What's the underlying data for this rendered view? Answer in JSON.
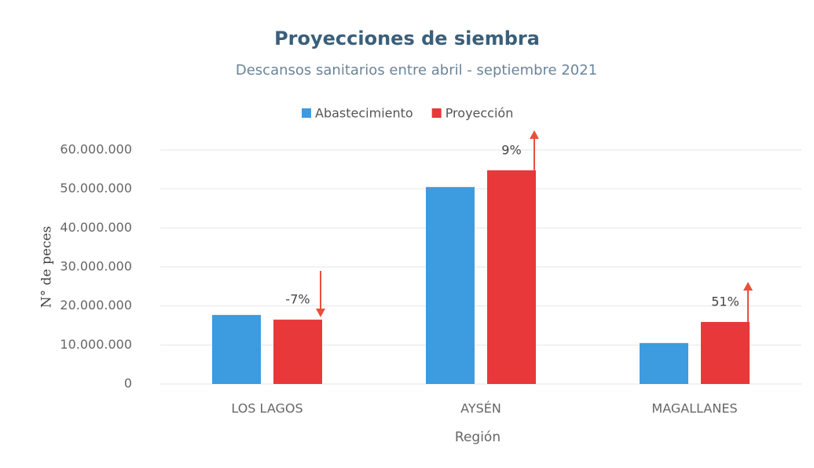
{
  "chart_data": {
    "type": "bar",
    "title": "Proyecciones de siembra",
    "subtitle": "Descansos sanitarios entre abril - septiembre 2021",
    "x_label": "Región",
    "y_label": "N° de peces",
    "categories": [
      "LOS LAGOS",
      "AYSÉN",
      "MAGALLANES"
    ],
    "series": [
      {
        "name": "Abastecimiento",
        "color": "#3d9be0",
        "values": [
          17700000,
          50500000,
          10500000
        ]
      },
      {
        "name": "Proyección",
        "color": "#e8383a",
        "values": [
          16500000,
          54800000,
          15900000
        ]
      }
    ],
    "annotations": [
      "-7%",
      "9%",
      "51%"
    ],
    "ylim": [
      0,
      60000000
    ],
    "yticks": [
      0,
      {
        "value": 10000000,
        "label": "10.000.000"
      },
      {
        "value": 20000000,
        "label": "20.000.000"
      },
      {
        "value": 30000000,
        "label": "30.000.000"
      },
      {
        "value": 40000000,
        "label": "40.000.000"
      },
      {
        "value": 50000000,
        "label": "50.000.000"
      },
      {
        "value": 60000000,
        "label": "60.000.000"
      }
    ],
    "grid": true,
    "legend": "top"
  }
}
